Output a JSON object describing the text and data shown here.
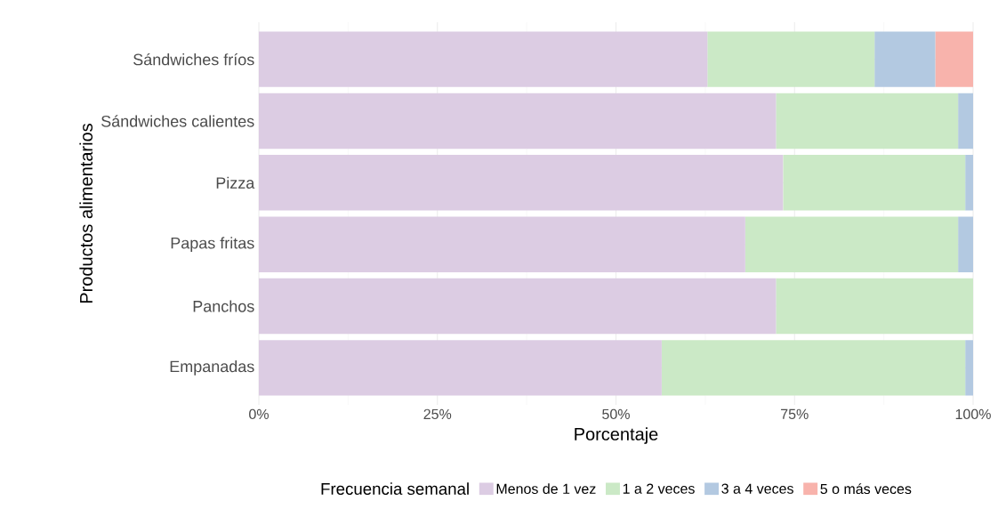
{
  "chart_data": {
    "type": "bar",
    "orientation": "horizontal",
    "stacked": true,
    "xlabel": "Porcentaje",
    "ylabel": "Productos alimentarios",
    "legend_title": "Frecuencia semanal",
    "categories": [
      "Sándwiches fríos",
      "Sándwiches calientes",
      "Pizza",
      "Papas fritas",
      "Panchos",
      "Empanadas"
    ],
    "series": [
      {
        "name": "Menos de 1 vez",
        "color": "#dccce3",
        "values": [
          62.8,
          72.4,
          73.4,
          68.1,
          72.4,
          56.4
        ]
      },
      {
        "name": "1 a 2 veces",
        "color": "#cbe9c6",
        "values": [
          23.4,
          25.5,
          25.5,
          29.8,
          27.6,
          42.5
        ]
      },
      {
        "name": "3 a 4 veces",
        "color": "#b3c9e1",
        "values": [
          8.5,
          2.1,
          1.1,
          2.1,
          0,
          1.1
        ]
      },
      {
        "name": "5 o más veces",
        "color": "#f8b3ac",
        "values": [
          5.3,
          0,
          0,
          0,
          0,
          0
        ]
      }
    ],
    "xlim": [
      0,
      100
    ],
    "xticks": [
      {
        "value": 0,
        "label": "0%"
      },
      {
        "value": 25,
        "label": "25%"
      },
      {
        "value": 50,
        "label": "50%"
      },
      {
        "value": 75,
        "label": "75%"
      },
      {
        "value": 100,
        "label": "100%"
      }
    ],
    "grid": true,
    "legend": "bottom"
  }
}
